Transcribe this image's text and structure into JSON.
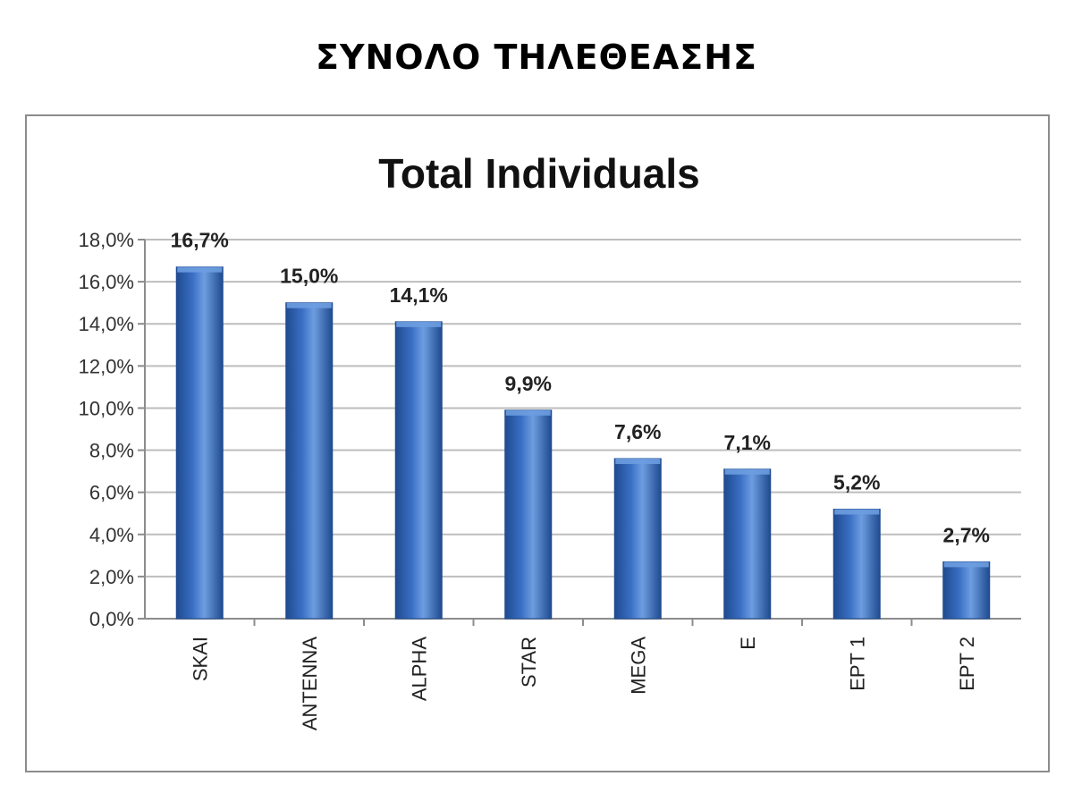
{
  "heading": "ΣΥΝΟΛΟ ΤΗΛΕΘΕΑΣΗΣ",
  "chart_data": {
    "type": "bar",
    "title": "Total Individuals",
    "xlabel": "",
    "ylabel": "",
    "categories": [
      "SKAI",
      "ANTENNA",
      "ALPHA",
      "STAR",
      "MEGA",
      "E",
      "EPT 1",
      "EPT 2"
    ],
    "values": [
      16.7,
      15.0,
      14.1,
      9.9,
      7.6,
      7.1,
      5.2,
      2.7
    ],
    "value_labels": [
      "16,7%",
      "15,0%",
      "14,1%",
      "9,9%",
      "7,6%",
      "7,1%",
      "5,2%",
      "2,7%"
    ],
    "ylim": [
      0,
      18
    ],
    "yticks": [
      0,
      2,
      4,
      6,
      8,
      10,
      12,
      14,
      16,
      18
    ],
    "ytick_labels": [
      "0,0%",
      "2,0%",
      "4,0%",
      "6,0%",
      "8,0%",
      "10,0%",
      "12,0%",
      "14,0%",
      "16,0%",
      "18,0%"
    ],
    "grid": true,
    "legend": "none",
    "colors": {
      "bar": "#3a6fc4",
      "bar_light": "#6d9de0",
      "bar_dark": "#1f4a8f",
      "grid": "#bdbdbd",
      "axis": "#8c8c8c"
    }
  }
}
